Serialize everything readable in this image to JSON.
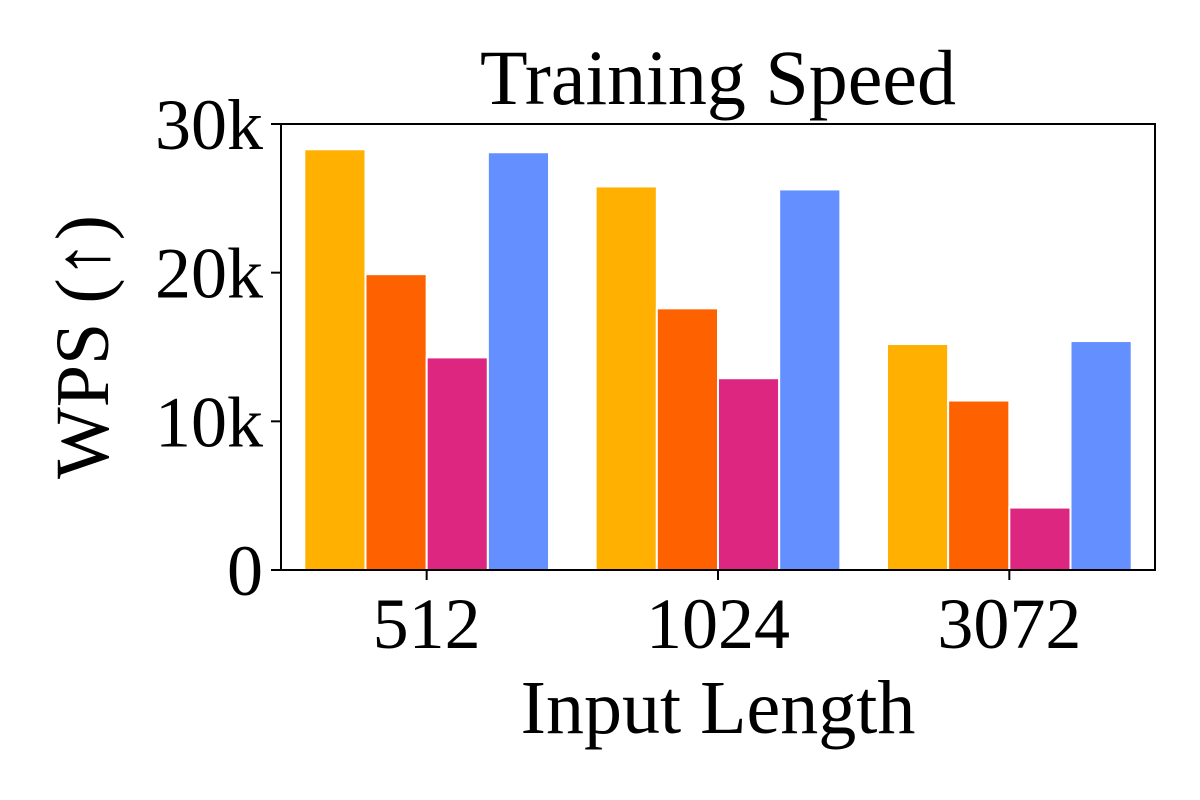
{
  "chart_data": {
    "type": "bar",
    "title": "Training Speed",
    "xlabel": "Input Length",
    "ylabel": "WPS (↑)",
    "categories": [
      "512",
      "1024",
      "3072"
    ],
    "series": [
      {
        "color": "#FFB000",
        "values": [
          28300,
          25800,
          15200
        ]
      },
      {
        "color": "#FE6100",
        "values": [
          19900,
          17600,
          11400
        ]
      },
      {
        "color": "#DC267F",
        "values": [
          14300,
          12900,
          4200
        ]
      },
      {
        "color": "#648FFF",
        "values": [
          28100,
          25600,
          15400
        ]
      }
    ],
    "ylim": [
      0,
      30000
    ],
    "yticks": [
      0,
      10000,
      20000,
      30000
    ],
    "ytick_labels": [
      "0",
      "10k",
      "20k",
      "30k"
    ],
    "grid": false,
    "legend": "none"
  }
}
